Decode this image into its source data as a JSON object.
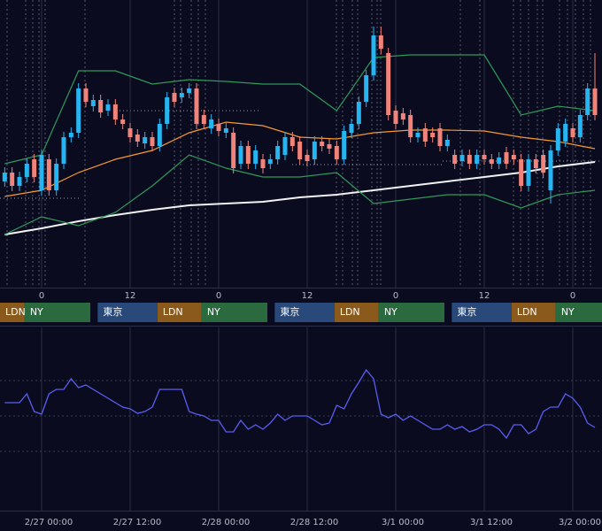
{
  "chart_data": [
    {
      "type": "candlestick",
      "x": [
        -5,
        -4,
        -3,
        -2,
        -1,
        0,
        1,
        2,
        3,
        4,
        5,
        6,
        7,
        8,
        9,
        10,
        11,
        12,
        13,
        14,
        15,
        16,
        17,
        18,
        19,
        20,
        21,
        22,
        23,
        24,
        25,
        26,
        27,
        28,
        29,
        30,
        31,
        32,
        33,
        34,
        35,
        36,
        37,
        38,
        39,
        40,
        41,
        42,
        43,
        44,
        45,
        46,
        47,
        48,
        49,
        50,
        51,
        52,
        53,
        54,
        55,
        56,
        57,
        58,
        59,
        60,
        61,
        62,
        63,
        64,
        65,
        66,
        67,
        68,
        69,
        70,
        71,
        72,
        73,
        74,
        75
      ],
      "open": [
        120,
        130,
        115,
        125,
        145,
        110,
        145,
        110,
        140,
        170,
        175,
        225,
        205,
        212,
        200,
        207,
        190,
        180,
        173,
        163,
        170,
        160,
        185,
        220,
        215,
        220,
        225,
        195,
        180,
        185,
        175,
        175,
        140,
        160,
        140,
        145,
        140,
        145,
        150,
        170,
        165,
        150,
        145,
        165,
        162,
        160,
        145,
        175,
        185,
        210,
        240,
        285,
        265,
        200,
        197,
        195,
        170,
        180,
        175,
        180,
        160,
        150,
        143,
        150,
        140,
        150,
        145,
        140,
        153,
        150,
        145,
        115,
        145,
        150,
        110,
        155,
        165,
        180,
        170,
        195,
        225
      ],
      "high": [
        136,
        136,
        131,
        146,
        151,
        156,
        151,
        146,
        176,
        181,
        231,
        231,
        218,
        218,
        213,
        213,
        196,
        186,
        179,
        176,
        176,
        191,
        221,
        226,
        226,
        231,
        231,
        201,
        196,
        191,
        186,
        181,
        166,
        166,
        161,
        151,
        151,
        166,
        176,
        176,
        171,
        156,
        171,
        171,
        168,
        166,
        183,
        191,
        216,
        246,
        295,
        295,
        271,
        206,
        203,
        201,
        181,
        186,
        181,
        186,
        173,
        156,
        156,
        156,
        156,
        156,
        151,
        153,
        159,
        156,
        151,
        151,
        151,
        156,
        161,
        186,
        191,
        186,
        201,
        231,
        265
      ],
      "low": [
        114,
        109,
        109,
        119,
        119,
        104,
        104,
        104,
        134,
        164,
        169,
        204,
        199,
        192,
        194,
        184,
        179,
        164,
        159,
        157,
        154,
        154,
        179,
        204,
        209,
        214,
        179,
        179,
        174,
        171,
        169,
        129,
        134,
        134,
        134,
        129,
        134,
        139,
        144,
        154,
        139,
        137,
        139,
        154,
        151,
        139,
        139,
        169,
        179,
        204,
        234,
        264,
        189,
        179,
        184,
        164,
        164,
        159,
        164,
        154,
        154,
        134,
        137,
        134,
        134,
        139,
        134,
        134,
        134,
        139,
        109,
        109,
        129,
        124,
        95,
        149,
        159,
        164,
        164,
        189,
        189
      ],
      "close": [
        130,
        115,
        125,
        140,
        125,
        150,
        110,
        140,
        170,
        175,
        225,
        210,
        212,
        198,
        207,
        190,
        185,
        170,
        165,
        170,
        160,
        185,
        215,
        210,
        220,
        225,
        185,
        185,
        190,
        177,
        180,
        135,
        160,
        140,
        155,
        135,
        145,
        160,
        170,
        160,
        145,
        143,
        165,
        160,
        157,
        145,
        177,
        185,
        210,
        240,
        285,
        270,
        195,
        185,
        190,
        170,
        175,
        165,
        170,
        160,
        167,
        140,
        150,
        140,
        150,
        145,
        140,
        147,
        140,
        145,
        115,
        145,
        135,
        130,
        155,
        180,
        185,
        170,
        195,
        225,
        195
      ],
      "up_color": "#26b5f0",
      "down_color": "#f0837a",
      "series": [
        {
          "color": "#f59a2e",
          "x": [
            -5,
            0,
            5,
            10,
            15,
            20,
            25,
            30,
            35,
            40,
            45,
            50,
            55,
            60,
            65,
            70,
            75
          ],
          "values": [
            103,
            110,
            130,
            145,
            155,
            175,
            187,
            183,
            170,
            168,
            175,
            178,
            178,
            177,
            170,
            165,
            157
          ]
        },
        {
          "color": "#f2f2f2",
          "x": [
            -5,
            0,
            5,
            10,
            15,
            20,
            25,
            30,
            35,
            40,
            45,
            50,
            55,
            60,
            65,
            70,
            75
          ],
          "values": [
            60,
            67,
            75,
            82,
            88,
            93,
            95,
            97,
            102,
            105,
            110,
            115,
            120,
            125,
            130,
            137,
            142
          ]
        },
        {
          "color": "#2f9a5a",
          "x": [
            -5,
            0,
            5,
            10,
            15,
            20,
            25,
            30,
            35,
            40,
            45,
            50,
            55,
            60,
            65,
            70,
            75
          ],
          "values": [
            140,
            150,
            245,
            245,
            230,
            235,
            233,
            230,
            230,
            200,
            260,
            263,
            263,
            263,
            195,
            205,
            200
          ]
        },
        {
          "color": "#2f9a5a",
          "x": [
            -5,
            0,
            5,
            10,
            15,
            20,
            25,
            30,
            35,
            40,
            45,
            50,
            55,
            60,
            65,
            70,
            75
          ],
          "values": [
            60,
            80,
            70,
            85,
            115,
            150,
            135,
            125,
            125,
            130,
            95,
            100,
            105,
            105,
            90,
            105,
            110
          ]
        }
      ],
      "xlim": [
        -5.64,
        75.96
      ],
      "ylim": [
        0,
        325
      ],
      "xticks": [
        0,
        12,
        {
          "value": 24,
          "label": "0"
        },
        {
          "value": 36,
          "label": "12"
        },
        {
          "value": 48,
          "label": "0"
        },
        {
          "value": 60,
          "label": "12"
        },
        {
          "value": 72,
          "label": "0"
        }
      ],
      "sessions": [
        {
          "label": "LDN",
          "start": -8.3,
          "end": -2.3,
          "color": "#8a5a1c"
        },
        {
          "label": "NY",
          "start": -2.3,
          "end": 6.6,
          "color": "#2b6a3e"
        },
        {
          "label": "東京",
          "start": 7.6,
          "end": 15.7,
          "color": "#28497a"
        },
        {
          "label": "LDN",
          "start": 15.7,
          "end": 21.7,
          "color": "#8a5a1c"
        },
        {
          "label": "NY",
          "start": 21.7,
          "end": 30.6,
          "color": "#2b6a3e"
        },
        {
          "label": "東京",
          "start": 31.6,
          "end": 39.7,
          "color": "#28497a"
        },
        {
          "label": "LDN",
          "start": 39.7,
          "end": 45.7,
          "color": "#8a5a1c"
        },
        {
          "label": "NY",
          "start": 45.7,
          "end": 54.6,
          "color": "#2b6a3e"
        },
        {
          "label": "東京",
          "start": 55.6,
          "end": 63.7,
          "color": "#28497a"
        },
        {
          "label": "LDN",
          "start": 63.7,
          "end": 69.7,
          "color": "#8a5a1c"
        },
        {
          "label": "NY",
          "start": 69.7,
          "end": 78.6,
          "color": "#2b6a3e"
        }
      ]
    },
    {
      "type": "line",
      "x": [
        -5,
        -4,
        -3,
        -2,
        -1,
        0,
        1,
        2,
        3,
        4,
        5,
        6,
        7,
        8,
        9,
        10,
        11,
        12,
        13,
        14,
        15,
        16,
        17,
        18,
        19,
        20,
        21,
        22,
        23,
        24,
        25,
        26,
        27,
        28,
        29,
        30,
        31,
        32,
        33,
        34,
        35,
        36,
        37,
        38,
        39,
        40,
        41,
        42,
        43,
        44,
        45,
        46,
        47,
        48,
        49,
        50,
        51,
        52,
        53,
        54,
        55,
        56,
        57,
        58,
        59,
        60,
        61,
        62,
        63,
        64,
        65,
        66,
        67,
        68,
        69,
        70,
        71,
        72,
        73,
        74,
        75
      ],
      "values": [
        120,
        120,
        120,
        130,
        110,
        107,
        130,
        135,
        135,
        147,
        137,
        140,
        135,
        130,
        125,
        120,
        115,
        113,
        108,
        110,
        115,
        135,
        135,
        135,
        135,
        110,
        107,
        105,
        100,
        100,
        87,
        87,
        100,
        90,
        95,
        90,
        97,
        107,
        100,
        105,
        105,
        105,
        100,
        95,
        97,
        117,
        113,
        130,
        143,
        157,
        147,
        107,
        103,
        107,
        100,
        105,
        100,
        95,
        90,
        90,
        95,
        90,
        93,
        87,
        90,
        95,
        95,
        90,
        80,
        95,
        95,
        85,
        90,
        110,
        115,
        115,
        130,
        125,
        115,
        97,
        92
      ],
      "color": "#5a5ef0",
      "xlim": [
        -5.64,
        75.96
      ],
      "ylim": [
        0,
        205
      ],
      "xticks": [
        {
          "value": 0,
          "label": "2/27 00:00"
        },
        {
          "value": 12,
          "label": "2/27 12:00"
        },
        {
          "value": 24,
          "label": "2/28 00:00"
        },
        {
          "value": 36,
          "label": "2/28 12:00"
        },
        {
          "value": 48,
          "label": "3/1 00:00"
        },
        {
          "value": 60,
          "label": "3/1 12:00"
        },
        {
          "value": 72,
          "label": "3/2 00:00"
        }
      ]
    }
  ]
}
